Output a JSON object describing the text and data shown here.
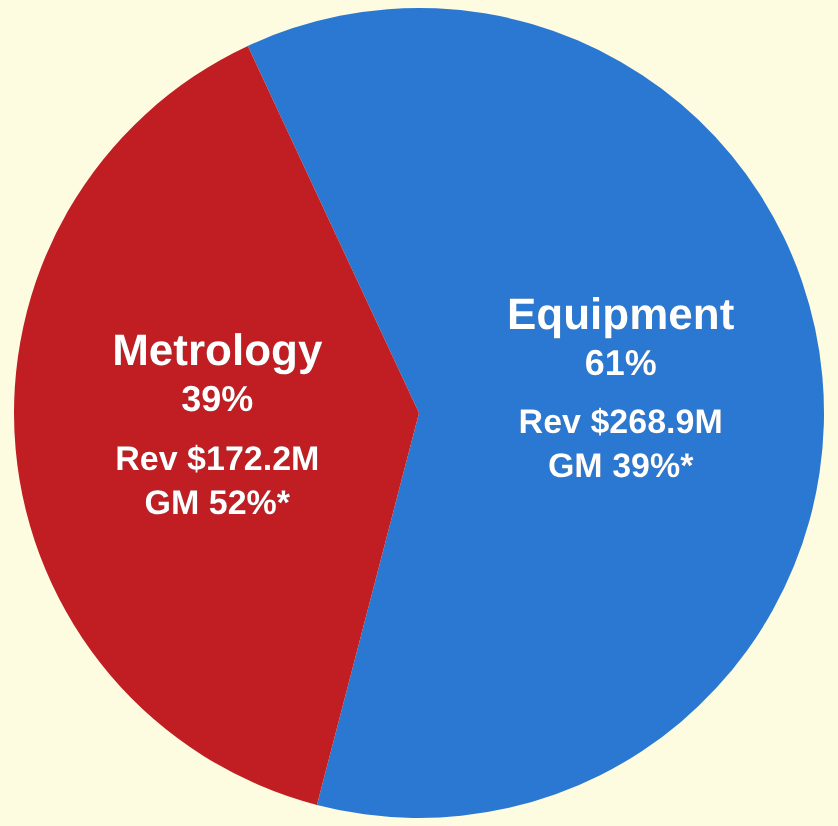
{
  "chart_data": {
    "type": "pie",
    "categories": [
      "Equipment",
      "Metrology"
    ],
    "values": [
      61,
      39
    ],
    "colors": [
      "#2a78d2",
      "#c01e22"
    ],
    "value_labels": [
      "61%",
      "39%"
    ],
    "annotations": [
      "Rev $268.9M",
      "GM 39%*",
      "Rev $172.2M",
      "GM 52%*"
    ],
    "legend": false
  }
}
